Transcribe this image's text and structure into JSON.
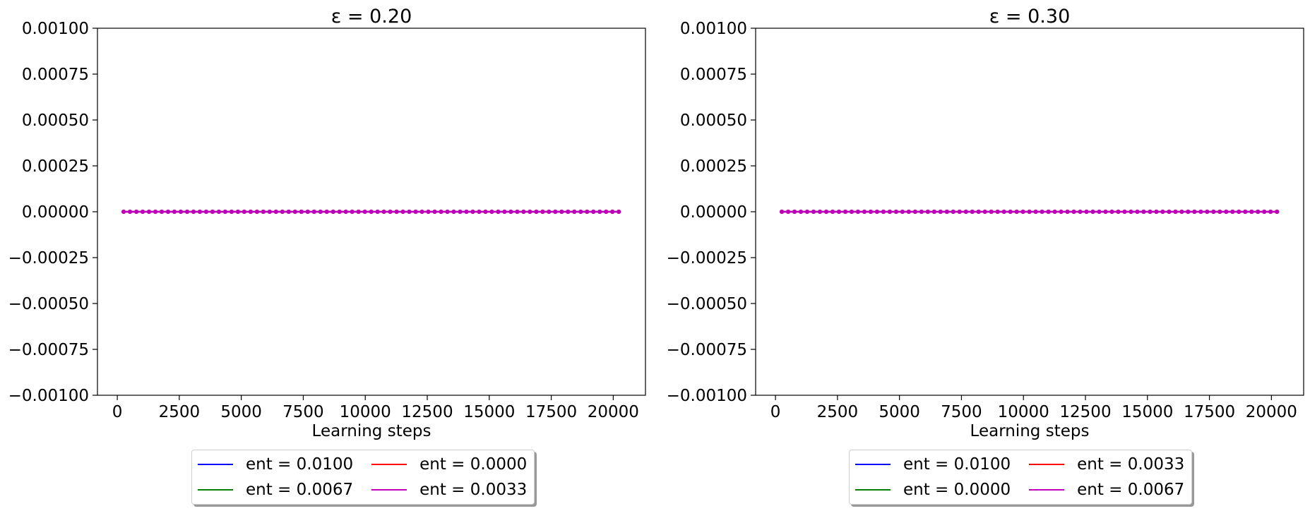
{
  "chart_data": [
    {
      "type": "line",
      "title": "ε = 0.20",
      "xlabel": "Learning steps",
      "ylabel": "",
      "xlim": [
        -800,
        21300
      ],
      "ylim": [
        -0.001,
        0.001
      ],
      "xticks": [
        0,
        2500,
        5000,
        7500,
        10000,
        12500,
        15000,
        17500,
        20000
      ],
      "yticks": [
        0.001,
        0.00075,
        0.0005,
        0.00025,
        0.0,
        -0.00025,
        -0.0005,
        -0.00075,
        -0.001
      ],
      "ytick_labels": [
        "0.00100",
        "0.00075",
        "0.00050",
        "0.00025",
        "0.00000",
        "−0.00025",
        "−0.00050",
        "−0.00075",
        "−0.00100"
      ],
      "xtick_labels": [
        "0",
        "2500",
        "5000",
        "7500",
        "10000",
        "12500",
        "15000",
        "17500",
        "20000"
      ],
      "x_points": {
        "start": 256,
        "end": 20224,
        "count": 79
      },
      "legend_position": "below",
      "series": [
        {
          "name": "ent = 0.0100",
          "color": "#0000ff",
          "value": 0.0
        },
        {
          "name": "ent = 0.0067",
          "color": "#008000",
          "value": 0.0
        },
        {
          "name": "ent = 0.0000",
          "color": "#ff0000",
          "value": 0.0
        },
        {
          "name": "ent = 0.0033",
          "color": "#bf00bf",
          "value": 0.0
        }
      ]
    },
    {
      "type": "line",
      "title": "ε = 0.30",
      "xlabel": "Learning steps",
      "ylabel": "",
      "xlim": [
        -800,
        21300
      ],
      "ylim": [
        -0.001,
        0.001
      ],
      "xticks": [
        0,
        2500,
        5000,
        7500,
        10000,
        12500,
        15000,
        17500,
        20000
      ],
      "yticks": [
        0.001,
        0.00075,
        0.0005,
        0.00025,
        0.0,
        -0.00025,
        -0.0005,
        -0.00075,
        -0.001
      ],
      "ytick_labels": [
        "0.00100",
        "0.00075",
        "0.00050",
        "0.00025",
        "0.00000",
        "−0.00025",
        "−0.00050",
        "−0.00075",
        "−0.00100"
      ],
      "xtick_labels": [
        "0",
        "2500",
        "5000",
        "7500",
        "10000",
        "12500",
        "15000",
        "17500",
        "20000"
      ],
      "x_points": {
        "start": 256,
        "end": 20224,
        "count": 79
      },
      "legend_position": "below",
      "series": [
        {
          "name": "ent = 0.0100",
          "color": "#0000ff",
          "value": 0.0
        },
        {
          "name": "ent = 0.0000",
          "color": "#008000",
          "value": 0.0
        },
        {
          "name": "ent = 0.0033",
          "color": "#ff0000",
          "value": 0.0
        },
        {
          "name": "ent = 0.0067",
          "color": "#bf00bf",
          "value": 0.0
        }
      ]
    }
  ]
}
